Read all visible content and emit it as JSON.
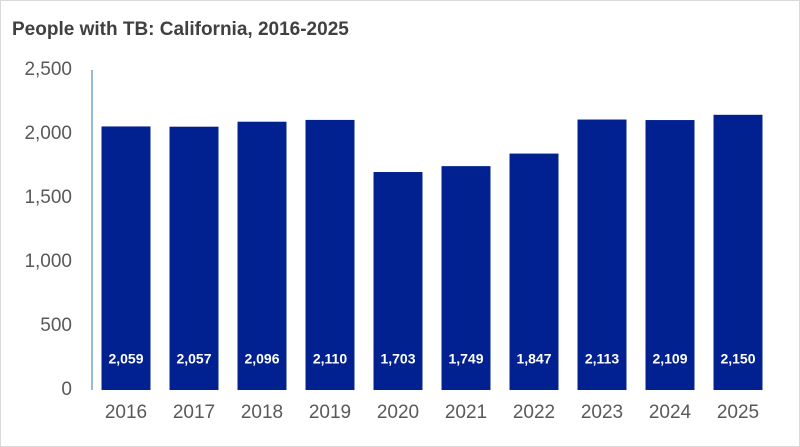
{
  "chart_data": {
    "type": "bar",
    "title": "People with TB: California, 2016-2025",
    "categories": [
      "2016",
      "2017",
      "2018",
      "2019",
      "2020",
      "2021",
      "2022",
      "2023",
      "2024",
      "2025"
    ],
    "values": [
      2059,
      2057,
      2096,
      2110,
      1703,
      1749,
      1847,
      2113,
      2109,
      2150
    ],
    "value_labels": [
      "2,059",
      "2,057",
      "2,096",
      "2,110",
      "1,703",
      "1,749",
      "1,847",
      "2,113",
      "2,109",
      "2,150"
    ],
    "color": "#00218f",
    "ylim": [
      0,
      2500
    ],
    "yticks": [
      0,
      500,
      {
        "value": 1000,
        "label": "1,000"
      },
      {
        "value": 1500,
        "label": "1,500"
      },
      {
        "value": 2000,
        "label": "2,000"
      },
      {
        "value": 2500,
        "label": "2,500"
      }
    ],
    "grid": false
  }
}
